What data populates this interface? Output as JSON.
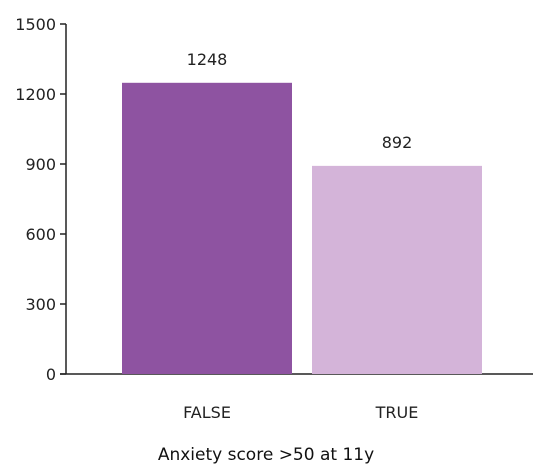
{
  "chart_data": {
    "type": "bar",
    "categories": [
      "FALSE",
      "TRUE"
    ],
    "values": [
      1248,
      892
    ],
    "data_labels": [
      "1248",
      "892"
    ],
    "colors": [
      "#8e53a1",
      "#d4b4d9"
    ],
    "title": "",
    "xlabel": "Anxiety score >50 at 11y",
    "ylabel": "",
    "ylim": [
      0,
      1500
    ],
    "yticks": [
      0,
      300,
      600,
      900,
      1200,
      1500
    ],
    "grid": false,
    "legend": "none"
  }
}
